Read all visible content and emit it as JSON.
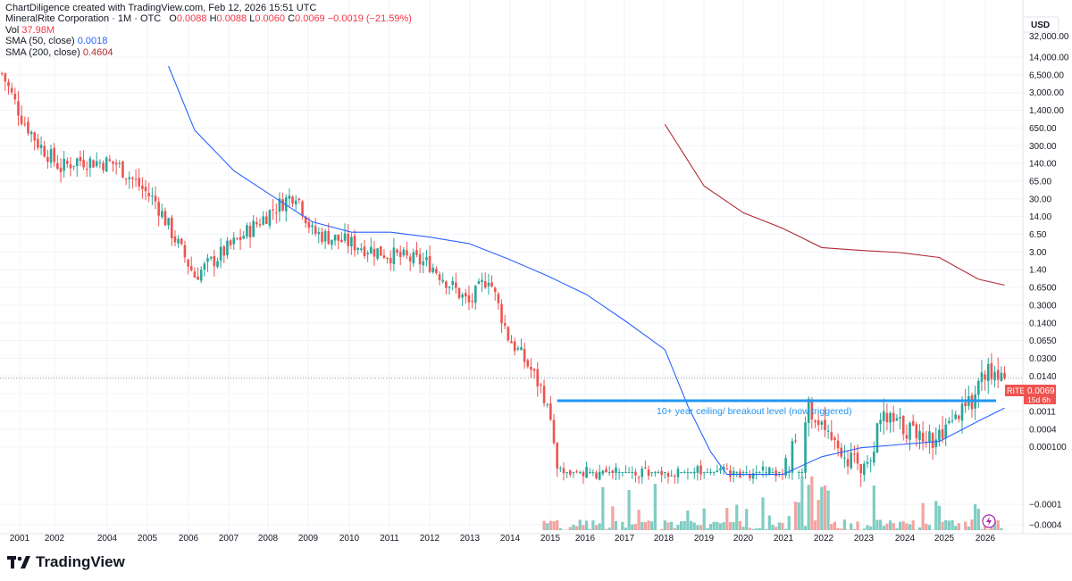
{
  "header": {
    "attribution": "ChartDiligence created with TradingView.com, Feb 12, 2026 15:51 UTC",
    "symbol_line": "MineralRite Corporation · 1M · OTC",
    "ohlc": {
      "o_label": "O",
      "o": "0.0088",
      "h_label": "H",
      "h": "0.0088",
      "l_label": "L",
      "l": "0.0060",
      "c_label": "C",
      "c": "0.0069",
      "change": "−0.0019 (−21.59%)"
    },
    "vol_label": "Vol",
    "vol_value": "37.98M",
    "sma50_label": "SMA (50, close)",
    "sma50_value": "0.0018",
    "sma200_label": "SMA (200, close)",
    "sma200_value": "0.4604"
  },
  "axis": {
    "currency": "USD",
    "top_clipped_label": "32,000.00",
    "y_ticks": [
      "14,000.00",
      "6,500.00",
      "3,000.00",
      "1,400.00",
      "650.00",
      "300.00",
      "140.00",
      "65.00",
      "30.00",
      "14.00",
      "6.50",
      "3.00",
      "1.40",
      "0.6500",
      "0.3000",
      "0.1400",
      "0.0650",
      "0.0300",
      "0.0140",
      "0.0025",
      "0.0011",
      "0.0004",
      "0.000100",
      "−0.0001",
      "−0.0004"
    ],
    "x_ticks": [
      "2001",
      "2002",
      "2004",
      "2005",
      "2006",
      "2007",
      "2008",
      "2009",
      "2010",
      "2011",
      "2012",
      "2013",
      "2014",
      "2015",
      "2016",
      "2017",
      "2018",
      "2019",
      "2020",
      "2021",
      "2022",
      "2023",
      "2024",
      "2025",
      "2026"
    ]
  },
  "price_tag": {
    "ticker": "RITE",
    "price": "0.0069",
    "countdown": "15d 6h"
  },
  "annotation": {
    "text": "10+ year ceiling/ breakout level (now triggered)"
  },
  "brand": {
    "name": "TradingView"
  },
  "colors": {
    "up": "#26a69a",
    "down": "#ef5350",
    "sma50": "#2962ff",
    "sma200": "#b22833",
    "level": "#2196f3",
    "vol_up": "#7fcdc3",
    "vol_down": "#f4a3a0"
  },
  "chart_data": {
    "type": "candlestick",
    "y_scale": "log",
    "x_range": [
      "2000-07",
      "2026-06"
    ],
    "y_range": [
      6e-05,
      32000
    ],
    "ohlc_monthly_keypoints": [
      {
        "date": "2000-07",
        "close": 6500
      },
      {
        "date": "2001-01",
        "close": 900
      },
      {
        "date": "2001-06",
        "close": 280
      },
      {
        "date": "2002-01",
        "close": 90
      },
      {
        "date": "2002-06",
        "close": 130
      },
      {
        "date": "2003-06",
        "close": 110
      },
      {
        "date": "2004-06",
        "close": 20
      },
      {
        "date": "2005-06",
        "close": 0.7
      },
      {
        "date": "2006-06",
        "close": 3
      },
      {
        "date": "2007-06",
        "close": 14
      },
      {
        "date": "2008-01",
        "close": 30
      },
      {
        "date": "2008-06",
        "close": 5
      },
      {
        "date": "2009-06",
        "close": 3
      },
      {
        "date": "2010-06",
        "close": 1.8
      },
      {
        "date": "2011-06",
        "close": 1.2
      },
      {
        "date": "2012-06",
        "close": 0.2
      },
      {
        "date": "2012-12",
        "close": 0.7
      },
      {
        "date": "2013-06",
        "close": 0.045
      },
      {
        "date": "2014-01",
        "close": 0.01
      },
      {
        "date": "2014-06",
        "close": 0.0025
      },
      {
        "date": "2014-09",
        "close": 0.0001
      },
      {
        "date": "2016-06",
        "close": 0.0001
      },
      {
        "date": "2018-06",
        "close": 0.0001
      },
      {
        "date": "2020-06",
        "close": 0.0001
      },
      {
        "date": "2021-02",
        "close": 0.002
      },
      {
        "date": "2022-06",
        "close": 0.0001
      },
      {
        "date": "2023-01",
        "close": 0.0011
      },
      {
        "date": "2024-06",
        "close": 0.0004
      },
      {
        "date": "2025-03",
        "close": 0.002
      },
      {
        "date": "2025-08",
        "close": 0.009
      },
      {
        "date": "2026-02",
        "close": 0.0069
      }
    ],
    "sma50": [
      {
        "date": "2004-10",
        "value": 9000
      },
      {
        "date": "2005-06",
        "value": 500
      },
      {
        "date": "2006-06",
        "value": 80
      },
      {
        "date": "2007-06",
        "value": 25
      },
      {
        "date": "2008-06",
        "value": 8
      },
      {
        "date": "2009-06",
        "value": 5
      },
      {
        "date": "2010-06",
        "value": 5
      },
      {
        "date": "2011-06",
        "value": 4
      },
      {
        "date": "2012-06",
        "value": 3
      },
      {
        "date": "2013-06",
        "value": 1.5
      },
      {
        "date": "2014-06",
        "value": 0.7
      },
      {
        "date": "2015-06",
        "value": 0.3
      },
      {
        "date": "2016-06",
        "value": 0.09
      },
      {
        "date": "2017-06",
        "value": 0.025
      },
      {
        "date": "2018-01",
        "value": 0.002
      },
      {
        "date": "2018-08",
        "value": 0.00025
      },
      {
        "date": "2019-01",
        "value": 9e-05
      },
      {
        "date": "2020-06",
        "value": 9e-05
      },
      {
        "date": "2021-06",
        "value": 0.0002
      },
      {
        "date": "2022-06",
        "value": 0.0003
      },
      {
        "date": "2024-06",
        "value": 0.0004
      },
      {
        "date": "2025-06",
        "value": 0.001
      },
      {
        "date": "2026-02",
        "value": 0.0018
      }
    ],
    "sma200": [
      {
        "date": "2017-06",
        "value": 650
      },
      {
        "date": "2018-06",
        "value": 40
      },
      {
        "date": "2019-06",
        "value": 12
      },
      {
        "date": "2020-06",
        "value": 6
      },
      {
        "date": "2021-06",
        "value": 2.5
      },
      {
        "date": "2022-06",
        "value": 2.2
      },
      {
        "date": "2023-06",
        "value": 2.0
      },
      {
        "date": "2024-06",
        "value": 1.6
      },
      {
        "date": "2025-06",
        "value": 0.6
      },
      {
        "date": "2026-02",
        "value": 0.4604
      }
    ],
    "breakout_level": {
      "value": 0.0025,
      "from": "2014-09",
      "to": "2026-06"
    },
    "last_price": 0.0069
  }
}
